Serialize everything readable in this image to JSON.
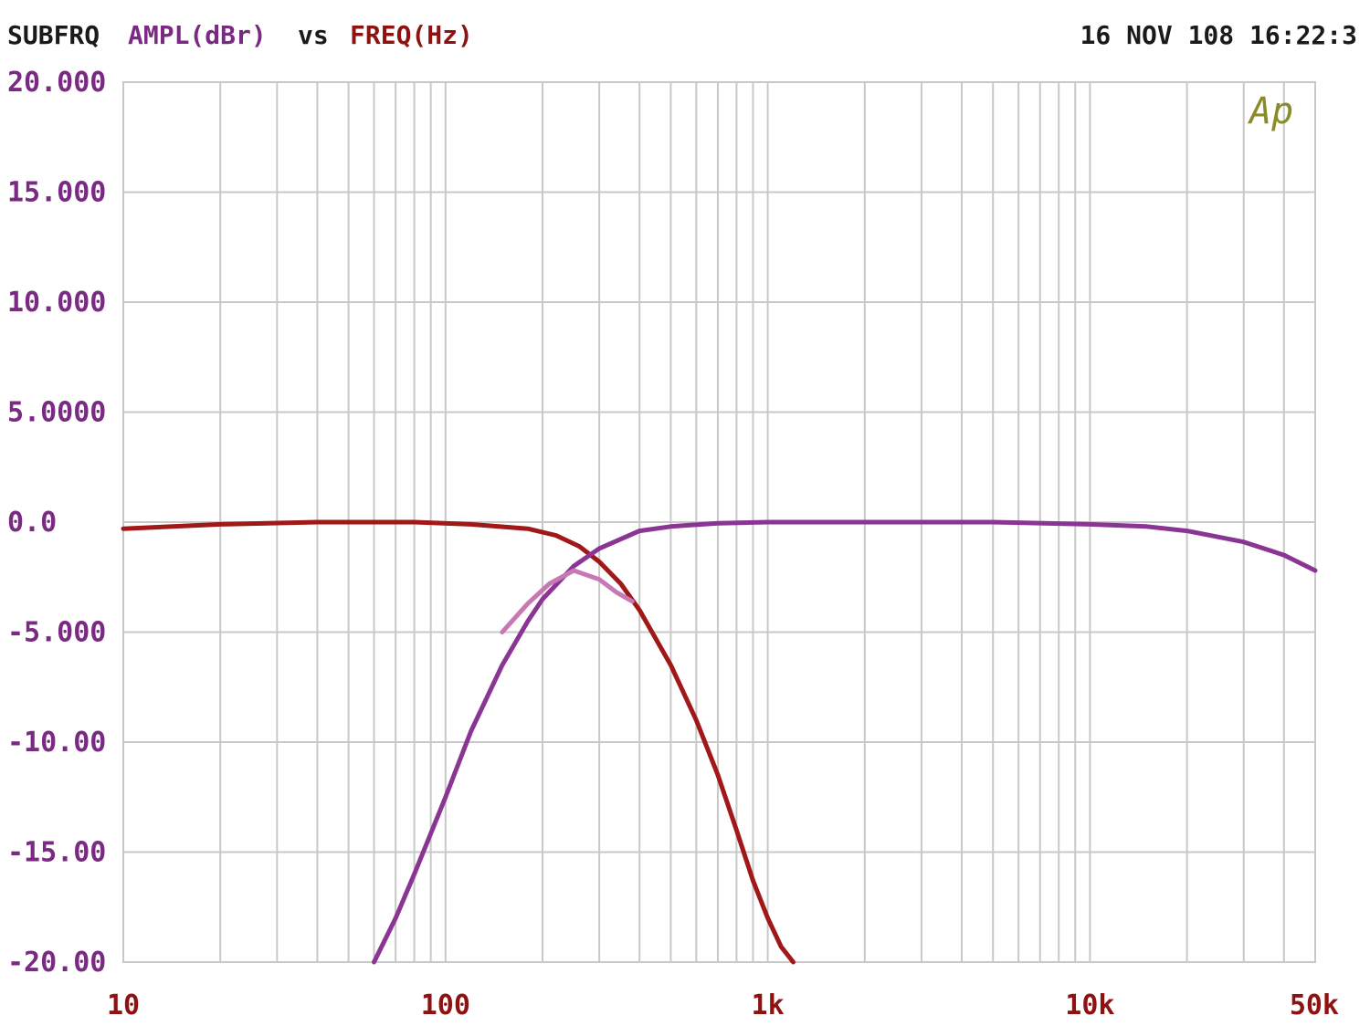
{
  "header": {
    "prefix": "SUBFRQ",
    "y_quantity": "AMPL(dBr)",
    "vs": "vs",
    "x_quantity": "FREQ(Hz)",
    "timestamp": "16 NOV 108 16:22:3"
  },
  "logo_text": "Ap",
  "colors": {
    "header_text": "#1a1a1a",
    "y_label": "#7a2a82",
    "x_label": "#8e1212",
    "grid": "#c8c8c8",
    "lowpass": "#a01818",
    "highpass": "#8a3594",
    "sum": "#c878b4",
    "logo": "#8a8a2a"
  },
  "chart_data": {
    "type": "line",
    "x_scale": "log",
    "xlim": [
      10,
      50000
    ],
    "ylim": [
      -20,
      20
    ],
    "grid": true,
    "x_ticks": [
      {
        "value": 10,
        "label": "10"
      },
      {
        "value": 100,
        "label": "100"
      },
      {
        "value": 1000,
        "label": "1k"
      },
      {
        "value": 10000,
        "label": "10k"
      },
      {
        "value": 50000,
        "label": "50k"
      }
    ],
    "y_ticks": [
      {
        "value": 20,
        "label": "20.000"
      },
      {
        "value": 15,
        "label": "15.000"
      },
      {
        "value": 10,
        "label": "10.000"
      },
      {
        "value": 5,
        "label": "5.0000"
      },
      {
        "value": 0,
        "label": "0.0"
      },
      {
        "value": -5,
        "label": "-5.000"
      },
      {
        "value": -10,
        "label": "-10.00"
      },
      {
        "value": -15,
        "label": "-15.00"
      },
      {
        "value": -20,
        "label": "-20.00"
      }
    ],
    "series": [
      {
        "color_key": "lowpass",
        "points": [
          [
            10,
            -0.3
          ],
          [
            20,
            -0.1
          ],
          [
            40,
            0.0
          ],
          [
            80,
            0.0
          ],
          [
            120,
            -0.1
          ],
          [
            180,
            -0.3
          ],
          [
            220,
            -0.6
          ],
          [
            260,
            -1.1
          ],
          [
            300,
            -1.8
          ],
          [
            350,
            -2.8
          ],
          [
            400,
            -4.0
          ],
          [
            500,
            -6.5
          ],
          [
            600,
            -9.0
          ],
          [
            700,
            -11.5
          ],
          [
            800,
            -14.0
          ],
          [
            900,
            -16.3
          ],
          [
            1000,
            -18.0
          ],
          [
            1100,
            -19.3
          ],
          [
            1200,
            -20.0
          ]
        ]
      },
      {
        "color_key": "highpass",
        "points": [
          [
            60,
            -20.0
          ],
          [
            70,
            -18.0
          ],
          [
            80,
            -16.0
          ],
          [
            100,
            -12.5
          ],
          [
            120,
            -9.5
          ],
          [
            150,
            -6.5
          ],
          [
            180,
            -4.5
          ],
          [
            200,
            -3.5
          ],
          [
            250,
            -2.0
          ],
          [
            300,
            -1.2
          ],
          [
            400,
            -0.4
          ],
          [
            500,
            -0.2
          ],
          [
            700,
            -0.05
          ],
          [
            1000,
            0.0
          ],
          [
            5000,
            0.0
          ],
          [
            10000,
            -0.1
          ],
          [
            15000,
            -0.2
          ],
          [
            20000,
            -0.4
          ],
          [
            30000,
            -0.9
          ],
          [
            40000,
            -1.5
          ],
          [
            50000,
            -2.2
          ]
        ]
      },
      {
        "color_key": "sum",
        "points": [
          [
            150,
            -5.0
          ],
          [
            180,
            -3.7
          ],
          [
            210,
            -2.8
          ],
          [
            250,
            -2.2
          ],
          [
            300,
            -2.6
          ],
          [
            340,
            -3.2
          ],
          [
            380,
            -3.6
          ]
        ]
      }
    ]
  }
}
